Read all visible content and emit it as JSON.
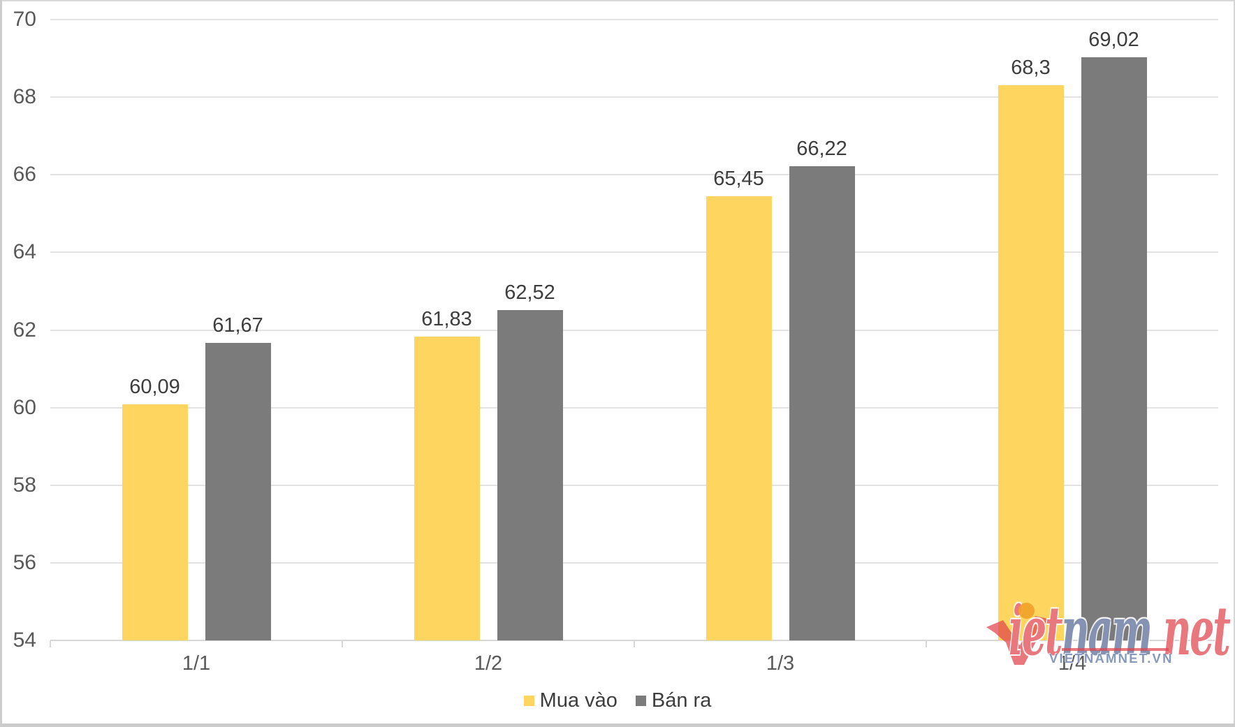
{
  "chart_data": {
    "type": "bar",
    "title": "",
    "xlabel": "",
    "ylabel": "",
    "categories": [
      "1/1",
      "1/2",
      "1/3",
      "1/4"
    ],
    "series": [
      {
        "key": "mua-vao",
        "name": "Mua vào",
        "color": "#fdd55f",
        "values": [
          60.09,
          61.83,
          65.45,
          68.3
        ],
        "labels": [
          "60,09",
          "61,83",
          "65,45",
          "68,3"
        ]
      },
      {
        "key": "ban-ra",
        "name": "Bán ra",
        "color": "#7b7b7b",
        "values": [
          61.67,
          62.52,
          66.22,
          69.02
        ],
        "labels": [
          "61,67",
          "62,52",
          "66,22",
          "69,02"
        ]
      }
    ],
    "ylim": [
      54,
      70
    ],
    "ytick_step": 2,
    "yticks": [
      "54",
      "56",
      "58",
      "60",
      "62",
      "64",
      "66",
      "68",
      "70"
    ],
    "grid": true,
    "legend_position": "bottom"
  },
  "colors": {
    "series_yellow": "#fdd55f",
    "series_gray": "#7b7b7b",
    "axis_label": "#595959",
    "data_label": "#3d3d3d",
    "legend_label": "#3d3d3d",
    "gridline": "#e3e3e3",
    "axis_line": "#d7d7d7",
    "watermark_red": "rgba(224,68,76,0.72)",
    "watermark_blue": "rgba(86,104,148,0.72)",
    "watermark_orange": "rgba(242,162,42,0.92)",
    "watermark_subtext": "rgba(128,146,184,0.95)"
  },
  "watermark": {
    "word_iet": "iet",
    "word_nam": "nam",
    "word_space": " ",
    "word_net": "net",
    "subtext": "VIETNAMNET.VN"
  }
}
